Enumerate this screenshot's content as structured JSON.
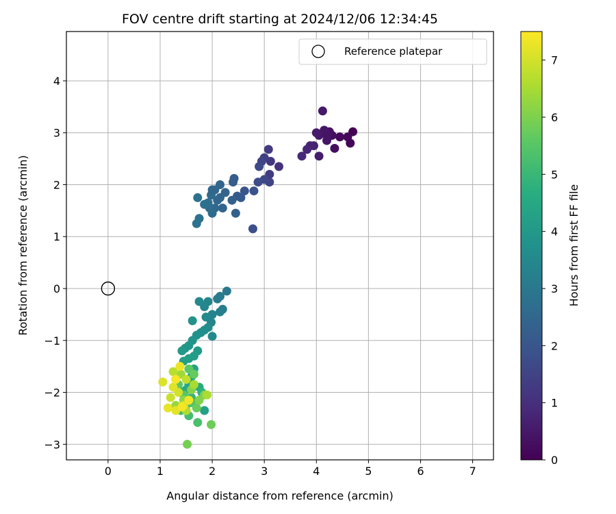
{
  "chart_data": {
    "type": "scatter",
    "title": "FOV centre drift starting at 2024/12/06 12:34:45",
    "xlabel": "Angular distance from reference (arcmin)",
    "ylabel": "Rotation from reference (arcmin)",
    "xlim": [
      -0.8,
      7.4
    ],
    "ylim": [
      -3.3,
      4.95
    ],
    "x_ticks": [
      0,
      1,
      2,
      3,
      4,
      5,
      6,
      7
    ],
    "y_ticks": [
      -3,
      -2,
      -1,
      0,
      1,
      2,
      3,
      4
    ],
    "grid": true,
    "legend": {
      "placement": "top-right",
      "entries": [
        "Reference platepar"
      ]
    },
    "reference_point": {
      "x": 0,
      "y": 0,
      "label": "Reference platepar",
      "marker": "open-circle"
    },
    "colorbar": {
      "label": "Hours from first FF file",
      "range": [
        0,
        7.5
      ],
      "ticks": [
        0,
        1,
        2,
        3,
        4,
        5,
        6,
        7
      ],
      "colormap": "viridis"
    },
    "points": [
      {
        "x": 4.7,
        "y": 3.02,
        "c": 0.0
      },
      {
        "x": 4.65,
        "y": 2.8,
        "c": 0.1
      },
      {
        "x": 4.6,
        "y": 2.92,
        "c": 0.15
      },
      {
        "x": 4.45,
        "y": 2.92,
        "c": 0.2
      },
      {
        "x": 4.35,
        "y": 2.7,
        "c": 0.3
      },
      {
        "x": 4.3,
        "y": 2.95,
        "c": 0.3
      },
      {
        "x": 4.25,
        "y": 3.02,
        "c": 0.35
      },
      {
        "x": 4.2,
        "y": 2.85,
        "c": 0.4
      },
      {
        "x": 4.15,
        "y": 3.05,
        "c": 0.45
      },
      {
        "x": 4.12,
        "y": 3.42,
        "c": 0.5
      },
      {
        "x": 4.05,
        "y": 2.95,
        "c": 0.5
      },
      {
        "x": 4.0,
        "y": 3.0,
        "c": 0.55
      },
      {
        "x": 4.05,
        "y": 2.55,
        "c": 0.6
      },
      {
        "x": 3.95,
        "y": 2.75,
        "c": 0.7
      },
      {
        "x": 3.88,
        "y": 2.75,
        "c": 0.75
      },
      {
        "x": 3.82,
        "y": 2.68,
        "c": 0.8
      },
      {
        "x": 3.72,
        "y": 2.55,
        "c": 0.9
      },
      {
        "x": 4.2,
        "y": 2.95,
        "c": 0.4
      },
      {
        "x": 3.28,
        "y": 2.35,
        "c": 1.1
      },
      {
        "x": 3.12,
        "y": 2.45,
        "c": 1.2
      },
      {
        "x": 3.1,
        "y": 2.2,
        "c": 1.3
      },
      {
        "x": 3.08,
        "y": 2.68,
        "c": 1.3
      },
      {
        "x": 3.0,
        "y": 2.52,
        "c": 1.4
      },
      {
        "x": 2.95,
        "y": 2.45,
        "c": 1.5
      },
      {
        "x": 3.1,
        "y": 2.05,
        "c": 1.5
      },
      {
        "x": 3.0,
        "y": 2.1,
        "c": 1.6
      },
      {
        "x": 2.9,
        "y": 2.35,
        "c": 1.65
      },
      {
        "x": 2.88,
        "y": 2.05,
        "c": 1.7
      },
      {
        "x": 2.78,
        "y": 1.15,
        "c": 1.8
      },
      {
        "x": 2.8,
        "y": 1.88,
        "c": 1.9
      },
      {
        "x": 2.62,
        "y": 1.88,
        "c": 2.0
      },
      {
        "x": 2.55,
        "y": 1.75,
        "c": 2.1
      },
      {
        "x": 2.48,
        "y": 1.78,
        "c": 2.1
      },
      {
        "x": 2.42,
        "y": 2.12,
        "c": 2.2
      },
      {
        "x": 2.4,
        "y": 2.05,
        "c": 2.2
      },
      {
        "x": 2.38,
        "y": 1.7,
        "c": 2.3
      },
      {
        "x": 2.45,
        "y": 1.45,
        "c": 2.3
      },
      {
        "x": 2.25,
        "y": 1.85,
        "c": 2.4
      },
      {
        "x": 2.2,
        "y": 1.55,
        "c": 2.4
      },
      {
        "x": 2.15,
        "y": 2.0,
        "c": 2.45
      },
      {
        "x": 2.1,
        "y": 1.7,
        "c": 2.5
      },
      {
        "x": 2.05,
        "y": 1.9,
        "c": 2.5
      },
      {
        "x": 2.05,
        "y": 1.55,
        "c": 2.55
      },
      {
        "x": 2.0,
        "y": 1.45,
        "c": 2.6
      },
      {
        "x": 1.98,
        "y": 1.8,
        "c": 2.6
      },
      {
        "x": 1.95,
        "y": 1.55,
        "c": 2.65
      },
      {
        "x": 1.92,
        "y": 1.65,
        "c": 2.7
      },
      {
        "x": 1.85,
        "y": 1.62,
        "c": 2.75
      },
      {
        "x": 1.75,
        "y": 1.35,
        "c": 2.8
      },
      {
        "x": 1.72,
        "y": 1.75,
        "c": 2.8
      },
      {
        "x": 1.7,
        "y": 1.25,
        "c": 2.85
      },
      {
        "x": 2.0,
        "y": 1.9,
        "c": 2.5
      },
      {
        "x": 2.15,
        "y": 1.75,
        "c": 2.45
      },
      {
        "x": 2.28,
        "y": -0.05,
        "c": 3.0
      },
      {
        "x": 2.15,
        "y": -0.15,
        "c": 3.05
      },
      {
        "x": 2.1,
        "y": -0.2,
        "c": 3.1
      },
      {
        "x": 2.2,
        "y": -0.4,
        "c": 3.15
      },
      {
        "x": 2.15,
        "y": -0.45,
        "c": 3.2
      },
      {
        "x": 2.0,
        "y": -0.5,
        "c": 3.3
      },
      {
        "x": 1.98,
        "y": -0.65,
        "c": 3.35
      },
      {
        "x": 1.92,
        "y": -0.25,
        "c": 3.4
      },
      {
        "x": 1.85,
        "y": -0.35,
        "c": 3.45
      },
      {
        "x": 1.75,
        "y": -0.25,
        "c": 3.5
      },
      {
        "x": 1.88,
        "y": -0.55,
        "c": 3.5
      },
      {
        "x": 2.0,
        "y": -0.92,
        "c": 3.55
      },
      {
        "x": 1.92,
        "y": -0.75,
        "c": 3.6
      },
      {
        "x": 1.85,
        "y": -0.8,
        "c": 3.65
      },
      {
        "x": 1.78,
        "y": -0.85,
        "c": 3.7
      },
      {
        "x": 1.7,
        "y": -0.9,
        "c": 3.75
      },
      {
        "x": 1.62,
        "y": -0.62,
        "c": 3.8
      },
      {
        "x": 1.62,
        "y": -1.0,
        "c": 3.85
      },
      {
        "x": 1.55,
        "y": -1.1,
        "c": 3.9
      },
      {
        "x": 1.48,
        "y": -1.15,
        "c": 3.95
      },
      {
        "x": 1.42,
        "y": -1.2,
        "c": 4.0
      },
      {
        "x": 1.72,
        "y": -1.2,
        "c": 4.05
      },
      {
        "x": 1.65,
        "y": -1.3,
        "c": 4.1
      },
      {
        "x": 1.55,
        "y": -1.35,
        "c": 4.15
      },
      {
        "x": 1.45,
        "y": -1.4,
        "c": 4.2
      },
      {
        "x": 1.85,
        "y": -2.35,
        "c": 4.25
      },
      {
        "x": 1.65,
        "y": -1.55,
        "c": 4.3
      },
      {
        "x": 1.6,
        "y": -1.7,
        "c": 4.4
      },
      {
        "x": 1.55,
        "y": -1.85,
        "c": 4.45
      },
      {
        "x": 1.5,
        "y": -1.95,
        "c": 4.5
      },
      {
        "x": 1.75,
        "y": -1.9,
        "c": 4.55
      },
      {
        "x": 1.3,
        "y": -1.75,
        "c": 4.6
      },
      {
        "x": 1.35,
        "y": -1.95,
        "c": 4.7
      },
      {
        "x": 1.8,
        "y": -2.0,
        "c": 4.8
      },
      {
        "x": 1.6,
        "y": -2.1,
        "c": 4.9
      },
      {
        "x": 1.5,
        "y": -2.25,
        "c": 5.0
      },
      {
        "x": 1.4,
        "y": -2.35,
        "c": 5.1
      },
      {
        "x": 1.55,
        "y": -2.45,
        "c": 5.2
      },
      {
        "x": 1.72,
        "y": -2.58,
        "c": 5.3
      },
      {
        "x": 1.6,
        "y": -2.2,
        "c": 5.4
      },
      {
        "x": 1.45,
        "y": -2.05,
        "c": 5.5
      },
      {
        "x": 1.35,
        "y": -1.85,
        "c": 5.55
      },
      {
        "x": 1.55,
        "y": -1.55,
        "c": 5.6
      },
      {
        "x": 1.65,
        "y": -1.65,
        "c": 5.7
      },
      {
        "x": 1.7,
        "y": -2.3,
        "c": 5.75
      },
      {
        "x": 1.98,
        "y": -2.62,
        "c": 5.8
      },
      {
        "x": 1.52,
        "y": -3.0,
        "c": 5.9
      },
      {
        "x": 1.85,
        "y": -2.05,
        "c": 6.0
      },
      {
        "x": 1.75,
        "y": -2.15,
        "c": 6.05
      },
      {
        "x": 1.6,
        "y": -1.95,
        "c": 6.1
      },
      {
        "x": 1.45,
        "y": -2.15,
        "c": 6.2
      },
      {
        "x": 1.3,
        "y": -2.25,
        "c": 6.3
      },
      {
        "x": 1.4,
        "y": -1.65,
        "c": 6.4
      },
      {
        "x": 1.65,
        "y": -1.85,
        "c": 6.5
      },
      {
        "x": 1.9,
        "y": -2.05,
        "c": 6.55
      },
      {
        "x": 1.5,
        "y": -2.35,
        "c": 6.6
      },
      {
        "x": 1.25,
        "y": -1.6,
        "c": 6.7
      },
      {
        "x": 1.5,
        "y": -1.75,
        "c": 6.8
      },
      {
        "x": 1.2,
        "y": -2.1,
        "c": 6.9
      },
      {
        "x": 1.35,
        "y": -2.0,
        "c": 7.0
      },
      {
        "x": 1.45,
        "y": -2.25,
        "c": 7.05
      },
      {
        "x": 1.05,
        "y": -1.8,
        "c": 7.1
      },
      {
        "x": 1.25,
        "y": -1.9,
        "c": 7.15
      },
      {
        "x": 1.3,
        "y": -2.35,
        "c": 7.2
      },
      {
        "x": 1.15,
        "y": -2.3,
        "c": 7.25
      },
      {
        "x": 1.38,
        "y": -1.5,
        "c": 7.3
      },
      {
        "x": 1.55,
        "y": -2.15,
        "c": 7.35
      },
      {
        "x": 1.42,
        "y": -2.28,
        "c": 7.4
      },
      {
        "x": 1.3,
        "y": -1.75,
        "c": 7.45
      }
    ]
  }
}
